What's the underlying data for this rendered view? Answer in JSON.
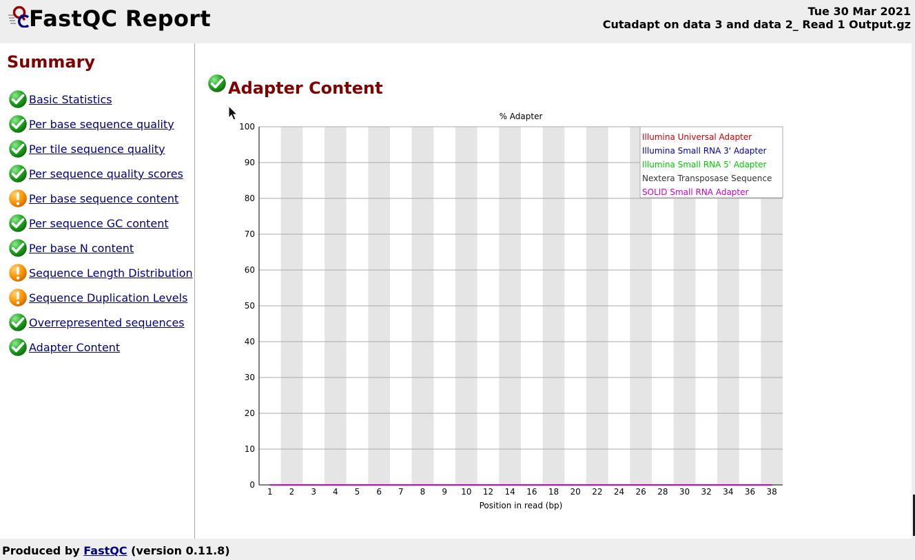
{
  "header": {
    "title": "FastQC Report",
    "date": "Tue 30 Mar 2021",
    "filename": "Cutadapt on data 3 and data 2_ Read 1 Output.gz"
  },
  "summary": {
    "title": "Summary",
    "items": [
      {
        "label": "Basic Statistics",
        "status": "pass"
      },
      {
        "label": "Per base sequence quality",
        "status": "pass"
      },
      {
        "label": "Per tile sequence quality",
        "status": "pass"
      },
      {
        "label": "Per sequence quality scores",
        "status": "pass"
      },
      {
        "label": "Per base sequence content",
        "status": "warn"
      },
      {
        "label": "Per sequence GC content",
        "status": "pass"
      },
      {
        "label": "Per base N content",
        "status": "pass"
      },
      {
        "label": "Sequence Length Distribution",
        "status": "warn"
      },
      {
        "label": "Sequence Duplication Levels",
        "status": "warn"
      },
      {
        "label": "Overrepresented sequences",
        "status": "pass"
      },
      {
        "label": "Adapter Content",
        "status": "pass"
      }
    ]
  },
  "module": {
    "title": "Adapter Content",
    "status": "pass"
  },
  "icons": {
    "pass": "check-icon",
    "warn": "warning-icon"
  },
  "colors": {
    "heading": "#800000",
    "link": "#000080",
    "pass": "#22aa22",
    "warn": "#ff9900"
  },
  "chart_data": {
    "type": "line",
    "title": "% Adapter",
    "xlabel": "Position in read (bp)",
    "ylabel": "",
    "ylim": [
      0,
      100
    ],
    "yticks": [
      0,
      10,
      20,
      30,
      40,
      50,
      60,
      70,
      80,
      90,
      100
    ],
    "categories": [
      "1",
      "2",
      "3",
      "4",
      "5",
      "6",
      "7",
      "8",
      "9",
      "10",
      "12",
      "14",
      "16",
      "18",
      "20",
      "22",
      "24",
      "26",
      "28",
      "30",
      "32",
      "34",
      "36",
      "38"
    ],
    "legend_position": "top-right",
    "series": [
      {
        "name": "Illumina Universal Adapter",
        "color": "#cc0000",
        "values": [
          0,
          0,
          0,
          0,
          0,
          0,
          0,
          0,
          0,
          0,
          0,
          0,
          0,
          0,
          0,
          0,
          0,
          0,
          0,
          0,
          0,
          0,
          0,
          0
        ]
      },
      {
        "name": "Illumina Small RNA 3' Adapter",
        "color": "#0000aa",
        "values": [
          0,
          0,
          0,
          0,
          0,
          0,
          0,
          0,
          0,
          0,
          0,
          0,
          0,
          0,
          0,
          0,
          0,
          0,
          0,
          0,
          0,
          0,
          0,
          0
        ]
      },
      {
        "name": "Illumina Small RNA 5' Adapter",
        "color": "#00cc00",
        "values": [
          0,
          0,
          0,
          0,
          0,
          0,
          0,
          0,
          0,
          0,
          0,
          0,
          0,
          0,
          0,
          0,
          0,
          0,
          0,
          0,
          0,
          0,
          0,
          0
        ]
      },
      {
        "name": "Nextera Transposase Sequence",
        "color": "#333333",
        "values": [
          0,
          0,
          0,
          0,
          0,
          0,
          0,
          0,
          0,
          0,
          0,
          0,
          0,
          0,
          0,
          0,
          0,
          0,
          0,
          0,
          0,
          0,
          0,
          0
        ]
      },
      {
        "name": "SOLID Small RNA Adapter",
        "color": "#cc00cc",
        "values": [
          0,
          0,
          0,
          0,
          0,
          0,
          0,
          0,
          0,
          0,
          0,
          0,
          0,
          0,
          0,
          0,
          0,
          0,
          0,
          0,
          0,
          0,
          0,
          0
        ]
      }
    ]
  },
  "footer": {
    "prefix": "Produced by",
    "link": "FastQC",
    "suffix": "(version 0.11.8)"
  }
}
